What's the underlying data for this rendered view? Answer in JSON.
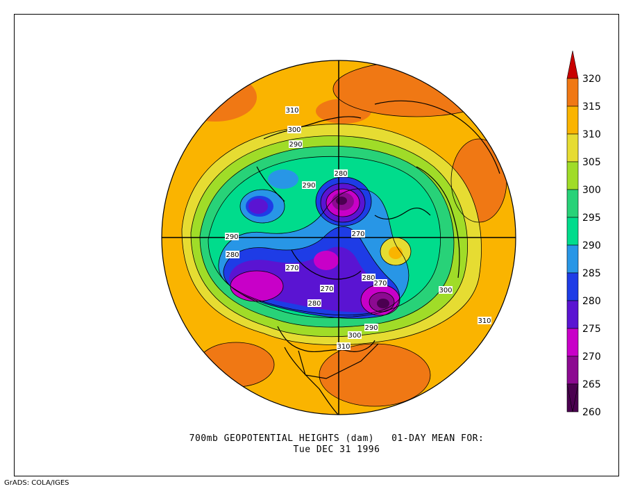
{
  "map": {
    "title_line1": "700mb GEOPOTENTIAL HEIGHTS (dam)   01-DAY MEAN FOR:",
    "title_line2": "Tue DEC 31 1996",
    "credit": "GrADS: COLA/IGES",
    "projection": "north polar stereographic",
    "units": "dam",
    "colorbar": {
      "levels": [
        260,
        265,
        270,
        275,
        280,
        285,
        290,
        295,
        300,
        305,
        310,
        315,
        320
      ],
      "colors": [
        "#4b0050",
        "#8c0a91",
        "#c800c8",
        "#5a14d2",
        "#1e3ce6",
        "#2896e6",
        "#00dc8c",
        "#28d278",
        "#a0dc28",
        "#e6dc32",
        "#fab400",
        "#f07814",
        "#c80000"
      ]
    },
    "contour_labels": [
      {
        "text": "310"
      },
      {
        "text": "300"
      },
      {
        "text": "290"
      },
      {
        "text": "290"
      },
      {
        "text": "280"
      },
      {
        "text": "270"
      },
      {
        "text": "290"
      },
      {
        "text": "280"
      },
      {
        "text": "270"
      },
      {
        "text": "270"
      },
      {
        "text": "280"
      },
      {
        "text": "280"
      },
      {
        "text": "270"
      },
      {
        "text": "300"
      },
      {
        "text": "310"
      },
      {
        "text": "290"
      },
      {
        "text": "300"
      },
      {
        "text": "310"
      }
    ]
  }
}
